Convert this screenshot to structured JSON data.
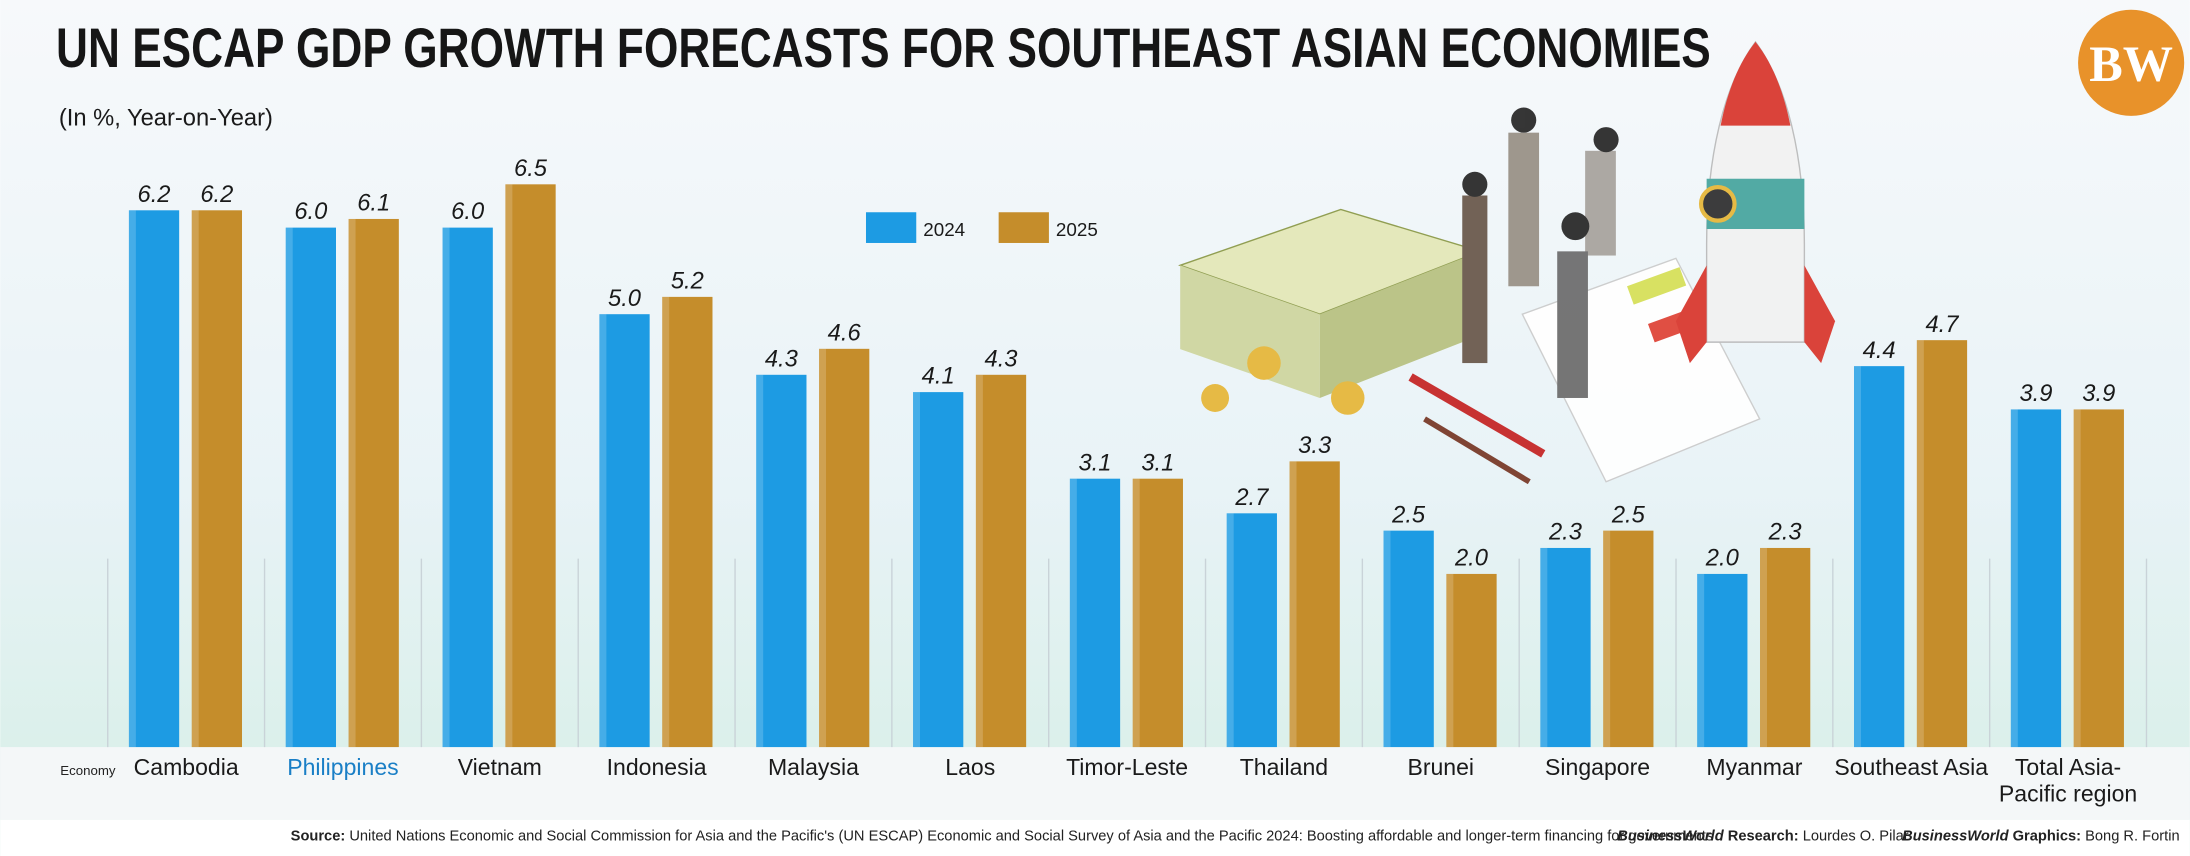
{
  "chart_data": {
    "type": "bar",
    "title": "UN ESCAP GDP GROWTH FORECASTS FOR SOUTHEAST ASIAN ECONOMIES",
    "subtitle": "(In %, Year-on-Year)",
    "x_label": "Economy",
    "categories": [
      "Cambodia",
      "Philippines",
      "Vietnam",
      "Indonesia",
      "Malaysia",
      "Laos",
      "Timor-Leste",
      "Thailand",
      "Brunei",
      "Singapore",
      "Myanmar",
      "Southeast Asia",
      "Total Asia-Pacific region"
    ],
    "series": [
      {
        "name": "2024",
        "color": "#1d9be3",
        "values": [
          6.2,
          6.0,
          6.0,
          5.0,
          4.3,
          4.1,
          3.1,
          2.7,
          2.5,
          2.3,
          2.0,
          4.4,
          3.9
        ],
        "value_labels": [
          "6.2",
          "6.0",
          "6.0",
          "5.0",
          "4.3",
          "4.1",
          "3.1",
          "2.7",
          "2.5",
          "2.3",
          "2.0",
          "4.4",
          "3.9"
        ]
      },
      {
        "name": "2025",
        "color": "#c58d2b",
        "values": [
          6.2,
          6.1,
          6.5,
          5.2,
          4.6,
          4.3,
          3.1,
          3.3,
          2.0,
          2.5,
          2.3,
          4.7,
          3.9
        ],
        "value_labels": [
          "6.2",
          "6.1",
          "6.5",
          "5.2",
          "4.6",
          "4.3",
          "3.1",
          "3.3",
          "2.0",
          "2.5",
          "2.3",
          "4.7",
          "3.9"
        ]
      }
    ],
    "ylim": [
      0,
      7
    ],
    "source_label": "Source:",
    "source": "United Nations Economic and Social Commission for Asia and the Pacific's (UN ESCAP) Economic and Social Survey of Asia and the Pacific 2024: Boosting affordable and longer-term financing for governments",
    "credits": [
      {
        "org": "BusinessWorld",
        "role": "Research:",
        "name": "Lourdes O. Pilar"
      },
      {
        "org": "BusinessWorld",
        "role": "Graphics:",
        "name": "Bong R. Fortin"
      }
    ],
    "logo": "BW"
  }
}
